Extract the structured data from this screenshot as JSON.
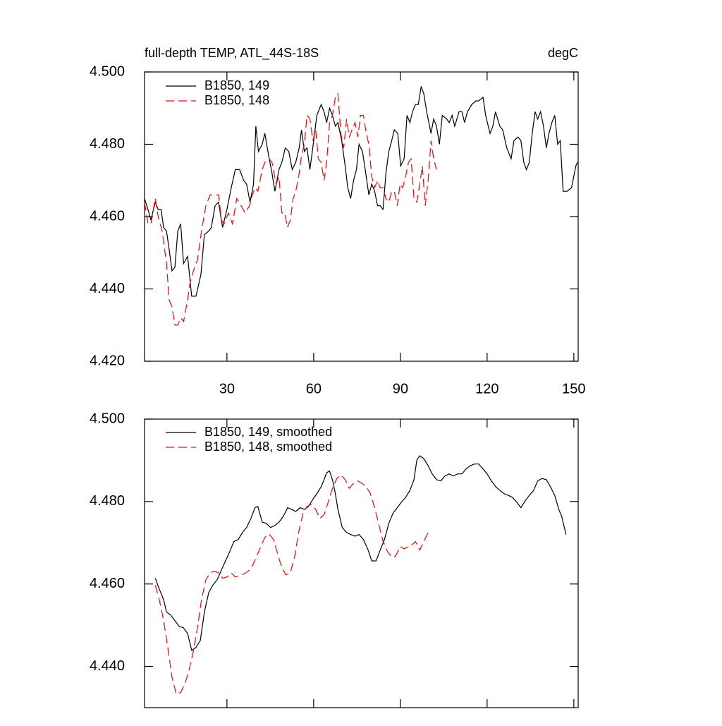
{
  "chart_data": [
    {
      "type": "line",
      "title": "full-depth TEMP, ATL_44S-18S",
      "units": "degC",
      "xlim": [
        1.5,
        151.5
      ],
      "xticks": [
        30,
        60,
        90,
        120,
        150
      ],
      "xtick_labels": true,
      "ylim": [
        4.42,
        4.5
      ],
      "yticks": [
        {
          "value": 4.42,
          "label": "4.420"
        },
        {
          "value": 4.44,
          "label": "4.440"
        },
        {
          "value": 4.46,
          "label": "4.460"
        },
        {
          "value": 4.48,
          "label": "4.480"
        },
        {
          "value": 4.5,
          "label": "4.500"
        }
      ],
      "legend": "upper left",
      "series": [
        {
          "name": "B1850, 149",
          "color": "#000000",
          "line_style": "solid",
          "x": [
            1.5,
            2.7,
            3.7,
            5.2,
            6.2,
            7.2,
            8.1,
            9.1,
            10,
            11,
            12,
            13,
            14,
            15,
            16.4,
            17.8,
            19.3,
            21,
            22.2,
            23.7,
            24.6,
            25.9,
            27.1,
            28.5,
            30,
            31.5,
            32.9,
            34.4,
            35.8,
            36.8,
            38,
            39.2,
            40,
            40.9,
            42.2,
            43.1,
            44.4,
            45.6,
            46.6,
            48,
            49,
            50.2,
            51.4,
            52.6,
            53.8,
            55,
            55.8,
            56.8,
            57.7,
            58.7,
            59.7,
            61.1,
            62.6,
            63.6,
            64.5,
            65.5,
            66.5,
            67.5,
            68.4,
            69.7,
            70.9,
            71.8,
            72.8,
            73.8,
            74.8,
            75.7,
            76.9,
            78.2,
            79.1,
            80.1,
            81.1,
            82.1,
            83,
            84,
            85,
            86,
            87,
            87.9,
            89.1,
            90.1,
            91.3,
            92.3,
            93.3,
            94.2,
            95.2,
            96.2,
            97.2,
            98.1,
            99.1,
            100.6,
            101.5,
            102.5,
            103.5,
            104.5,
            106,
            106.9,
            107.9,
            108.8,
            110.3,
            111.3,
            112.2,
            113.2,
            114.7,
            116.1,
            117.1,
            118.6,
            119.5,
            121,
            122,
            122.9,
            124.4,
            125.4,
            126.8,
            128.3,
            129.3,
            130.7,
            131.7,
            132.7,
            133.6,
            134.6,
            135.6,
            136.6,
            137.5,
            138.5,
            139.5,
            140.5,
            141.4,
            142.4,
            143.4,
            144.4,
            145.3,
            146.3,
            147.7,
            149.2,
            150.7,
            151.2
          ],
          "values": [
            4.465,
            4.462,
            4.459,
            4.464,
            4.462,
            4.462,
            4.457,
            4.456,
            4.451,
            4.445,
            4.446,
            4.456,
            4.458,
            4.447,
            4.449,
            4.438,
            4.438,
            4.444,
            4.455,
            4.456,
            4.457,
            4.463,
            4.464,
            4.457,
            4.462,
            4.468,
            4.473,
            4.473,
            4.47,
            4.469,
            4.464,
            4.469,
            4.485,
            4.478,
            4.48,
            4.483,
            4.477,
            4.472,
            4.467,
            4.473,
            4.475,
            4.479,
            4.478,
            4.473,
            4.475,
            4.479,
            4.484,
            4.478,
            4.479,
            4.473,
            4.479,
            4.488,
            4.491,
            4.489,
            4.486,
            4.49,
            4.488,
            4.485,
            4.486,
            4.481,
            4.474,
            4.468,
            4.465,
            4.47,
            4.473,
            4.48,
            4.478,
            4.471,
            4.466,
            4.469,
            4.467,
            4.463,
            4.463,
            4.462,
            4.472,
            4.478,
            4.481,
            4.484,
            4.483,
            4.474,
            4.476,
            4.488,
            4.486,
            4.489,
            4.491,
            4.491,
            4.496,
            4.494,
            4.489,
            4.483,
            4.487,
            4.485,
            4.48,
            4.488,
            4.487,
            4.486,
            4.488,
            4.485,
            4.489,
            4.489,
            4.486,
            4.489,
            4.491,
            4.492,
            4.492,
            4.493,
            4.488,
            4.483,
            4.485,
            4.489,
            4.485,
            4.484,
            4.479,
            4.476,
            4.481,
            4.482,
            4.481,
            4.475,
            4.473,
            4.475,
            4.483,
            4.489,
            4.487,
            4.489,
            4.485,
            4.479,
            4.483,
            4.486,
            4.488,
            4.48,
            4.481,
            4.467,
            4.467,
            4.468,
            4.474,
            4.475
          ]
        },
        {
          "name": "B1850, 148",
          "color": "#ff0000",
          "line_style": "dashed",
          "x": [
            1.5,
            2.7,
            3.7,
            5.2,
            6.2,
            7.6,
            9.1,
            10,
            11,
            12,
            13,
            14,
            15,
            16.4,
            17.3,
            18.8,
            19.8,
            21.2,
            22.7,
            24.2,
            25.6,
            27.1,
            28.1,
            29,
            30.5,
            31.9,
            33.4,
            34.9,
            36.3,
            37.8,
            38.8,
            39.7,
            40.7,
            42.2,
            43.1,
            44.6,
            45.6,
            47,
            48,
            49,
            50,
            50.9,
            51.9,
            52.9,
            53.8,
            54.8,
            55.8,
            56.8,
            57.7,
            58.7,
            59.7,
            60.7,
            61.6,
            62.6,
            63.6,
            64.5,
            65.5,
            66.5,
            67.5,
            68.4,
            69.4,
            70.4,
            71.4,
            72.3,
            73.3,
            74.3,
            75.3,
            76.2,
            77.2,
            78.2,
            79.1,
            80.1,
            81.1,
            82.1,
            83,
            84,
            85,
            86,
            87,
            87.9,
            88.9,
            89.9,
            90.8,
            91.8,
            92.8,
            93.7,
            94.7,
            95.7,
            96.7,
            97.6,
            98.6,
            99.6,
            100.6,
            101.5,
            102.5
          ],
          "values": [
            4.464,
            4.458,
            4.458,
            4.465,
            4.46,
            4.456,
            4.447,
            4.437,
            4.435,
            4.43,
            4.43,
            4.432,
            4.431,
            4.437,
            4.442,
            4.446,
            4.448,
            4.456,
            4.463,
            4.466,
            4.466,
            4.466,
            4.459,
            4.458,
            4.461,
            4.458,
            4.465,
            4.463,
            4.461,
            4.463,
            4.466,
            4.468,
            4.467,
            4.473,
            4.475,
            4.476,
            4.475,
            4.469,
            4.471,
            4.461,
            4.461,
            4.457,
            4.459,
            4.465,
            4.467,
            4.471,
            4.477,
            4.48,
            4.488,
            4.487,
            4.481,
            4.484,
            4.476,
            4.475,
            4.47,
            4.475,
            4.486,
            4.488,
            4.493,
            4.494,
            4.483,
            4.479,
            4.487,
            4.482,
            4.484,
            4.486,
            4.482,
            4.488,
            4.488,
            4.483,
            4.48,
            4.471,
            4.468,
            4.47,
            4.468,
            4.468,
            4.465,
            4.464,
            4.467,
            4.467,
            4.463,
            4.469,
            4.468,
            4.471,
            4.475,
            4.476,
            4.465,
            4.464,
            4.469,
            4.474,
            4.463,
            4.47,
            4.481,
            4.476,
            4.473
          ]
        }
      ]
    },
    {
      "type": "line",
      "xlim": [
        1.5,
        151.5
      ],
      "xticks": [
        30,
        60,
        90,
        120,
        150
      ],
      "xtick_labels": false,
      "ylim": [
        4.43,
        4.5
      ],
      "yticks": [
        {
          "value": 4.44,
          "label": "4.440"
        },
        {
          "value": 4.46,
          "label": "4.460"
        },
        {
          "value": 4.48,
          "label": "4.480"
        },
        {
          "value": 4.5,
          "label": "4.500"
        }
      ],
      "legend": "upper left",
      "series": [
        {
          "name": "B1850, 149, smoothed",
          "color": "#000000",
          "line_style": "solid",
          "x": [
            5.2,
            6.6,
            8.1,
            9.1,
            10.5,
            12,
            13.5,
            14.9,
            16.4,
            17.8,
            19.3,
            20.8,
            22.2,
            23.7,
            25.1,
            26.6,
            28.1,
            29.5,
            31,
            32.4,
            33.9,
            35.4,
            36.8,
            38.3,
            39.7,
            40.7,
            42.2,
            43.6,
            45.1,
            46.6,
            48,
            49.5,
            51,
            52.4,
            53.8,
            55.3,
            56.8,
            58.2,
            59.7,
            61.1,
            62.6,
            63.6,
            64.5,
            65.5,
            66.5,
            67.5,
            68.4,
            69.9,
            71.4,
            72.8,
            74.3,
            75.7,
            77.2,
            78.7,
            80.1,
            81.6,
            83,
            84.5,
            86,
            87.4,
            88.9,
            90.3,
            91.8,
            93.3,
            94.7,
            95.7,
            96.7,
            98.1,
            99.6,
            101,
            102.5,
            104,
            105.4,
            106.9,
            108.3,
            109.8,
            111.3,
            112.7,
            114.2,
            115.6,
            117.1,
            118.6,
            120,
            121.5,
            123,
            124.4,
            125.9,
            127.3,
            128.8,
            130.3,
            131.7,
            133.2,
            134.6,
            136.1,
            137.5,
            139,
            140.5,
            141.9,
            143.4,
            144.8,
            145.8,
            147.3
          ],
          "values": [
            4.4614,
            4.4588,
            4.4562,
            4.4532,
            4.4525,
            4.4511,
            4.4497,
            4.4494,
            4.448,
            4.4439,
            4.4446,
            4.4463,
            4.4532,
            4.4579,
            4.4597,
            4.461,
            4.4634,
            4.4656,
            4.4679,
            4.4703,
            4.4708,
            4.4725,
            4.4737,
            4.4759,
            4.4785,
            4.4788,
            4.475,
            4.4747,
            4.4737,
            4.4742,
            4.475,
            4.4764,
            4.4785,
            4.4781,
            4.4776,
            4.4785,
            4.4781,
            4.4788,
            4.4805,
            4.4819,
            4.4836,
            4.4853,
            4.487,
            4.4874,
            4.4853,
            4.4819,
            4.4781,
            4.4737,
            4.4725,
            4.472,
            4.4716,
            4.472,
            4.4708,
            4.4685,
            4.4656,
            4.4656,
            4.4682,
            4.4708,
            4.4747,
            4.4771,
            4.4785,
            4.4798,
            4.481,
            4.4827,
            4.4853,
            4.4901,
            4.4911,
            4.4904,
            4.4887,
            4.4867,
            4.4853,
            4.485,
            4.4862,
            4.4867,
            4.4862,
            4.4867,
            4.4867,
            4.4879,
            4.4887,
            4.4891,
            4.4891,
            4.4879,
            4.4867,
            4.485,
            4.4836,
            4.4827,
            4.4819,
            4.4815,
            4.481,
            4.4798,
            4.4785,
            4.4802,
            4.4815,
            4.4827,
            4.485,
            4.4856,
            4.4853,
            4.4836,
            4.4815,
            4.4781,
            4.4764,
            4.472
          ]
        },
        {
          "name": "B1850, 148, smoothed",
          "color": "#ff0000",
          "line_style": "dashed",
          "x": [
            5.2,
            6.6,
            8.1,
            9.6,
            11,
            12.5,
            14,
            15.4,
            16.9,
            18.3,
            19.8,
            21.2,
            22.7,
            24.2,
            25.6,
            27.1,
            28.5,
            30,
            31.5,
            32.9,
            34.4,
            35.8,
            37.3,
            38.8,
            40.2,
            41.7,
            43.1,
            44.6,
            46.1,
            47.5,
            49,
            50.4,
            51.9,
            53.4,
            54.8,
            56.3,
            57.7,
            59.2,
            60.7,
            62.1,
            63.6,
            65,
            66.5,
            68,
            69.4,
            70.9,
            72.3,
            73.8,
            75.3,
            76.7,
            78.2,
            79.6,
            81.1,
            82.6,
            84,
            85.5,
            87,
            88.4,
            89.9,
            91.3,
            92.8,
            94.2,
            95.2,
            96.7,
            98.1,
            99.6
          ],
          "values": [
            4.4597,
            4.4562,
            4.4511,
            4.4443,
            4.4374,
            4.4332,
            4.4337,
            4.4357,
            4.4391,
            4.4434,
            4.4494,
            4.4562,
            4.461,
            4.4627,
            4.4631,
            4.4627,
            4.4614,
            4.4617,
            4.4627,
            4.4617,
            4.4621,
            4.4624,
            4.4631,
            4.4644,
            4.4665,
            4.4691,
            4.4713,
            4.4721,
            4.4708,
            4.4674,
            4.4639,
            4.4622,
            4.4627,
            4.4665,
            4.4725,
            4.4771,
            4.4788,
            4.4793,
            4.4781,
            4.4759,
            4.4768,
            4.4798,
            4.4832,
            4.4856,
            4.4865,
            4.4853,
            4.4832,
            4.4844,
            4.485,
            4.4844,
            4.4836,
            4.4819,
            4.4785,
            4.4742,
            4.4703,
            4.4679,
            4.4665,
            4.4668,
            4.4691,
            4.4685,
            4.4691,
            4.4696,
            4.4703,
            4.4682,
            4.4703,
            4.4725
          ]
        }
      ]
    }
  ]
}
